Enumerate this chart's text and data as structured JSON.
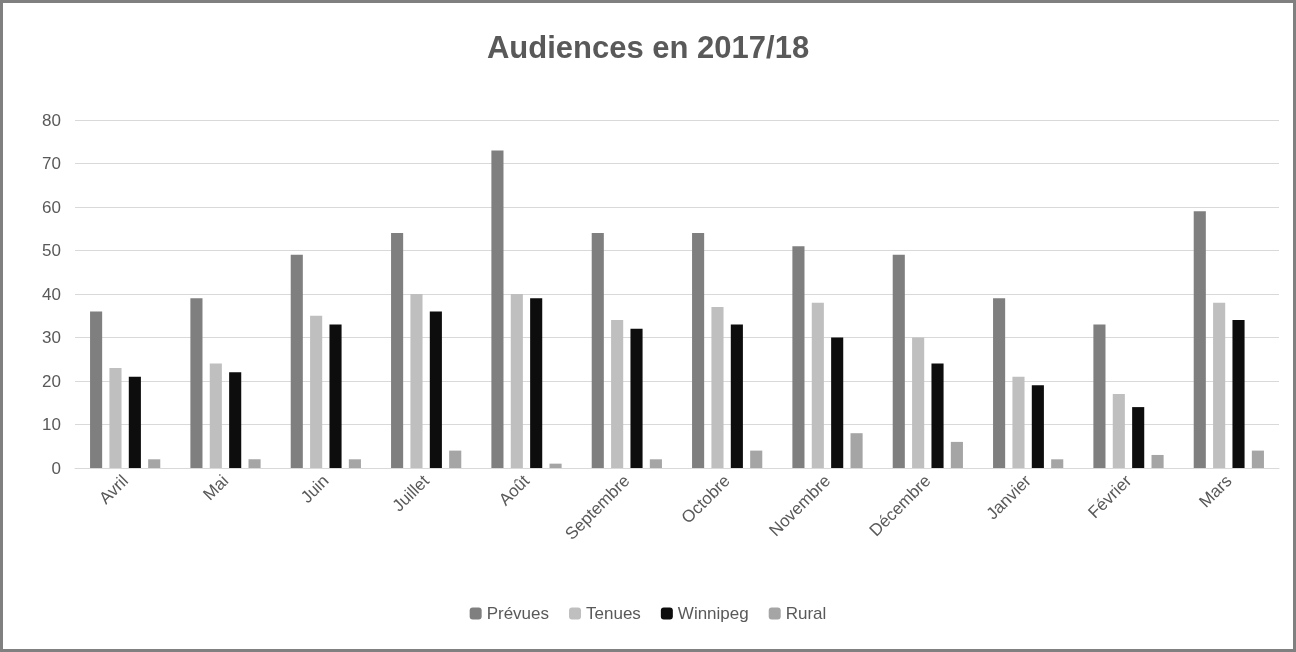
{
  "chart_data": {
    "type": "bar",
    "title": "Audiences en 2017/18",
    "categories": [
      "Avril",
      "Mai",
      "Juin",
      "Juillet",
      "Août",
      "Septembre",
      "Octobre",
      "Novembre",
      "Décembre",
      "Janvier",
      "Février",
      "Mars"
    ],
    "series": [
      {
        "name": "Prévues",
        "color": "#7f7f7f",
        "values": [
          36,
          39,
          49,
          54,
          73,
          54,
          54,
          51,
          49,
          39,
          33,
          59
        ]
      },
      {
        "name": "Tenues",
        "color": "#bfbfbf",
        "values": [
          23,
          24,
          35,
          40,
          40,
          34,
          37,
          38,
          30,
          21,
          17,
          38
        ]
      },
      {
        "name": "Winnipeg",
        "color": "#0d0d0d",
        "values": [
          21,
          22,
          33,
          36,
          39,
          32,
          33,
          30,
          24,
          19,
          14,
          34
        ]
      },
      {
        "name": "Rural",
        "color": "#a5a5a5",
        "values": [
          2,
          2,
          2,
          4,
          1,
          2,
          4,
          8,
          6,
          2,
          3,
          4
        ]
      }
    ],
    "ylim": [
      0,
      80
    ],
    "yticks": [
      0,
      10,
      20,
      30,
      40,
      50,
      60,
      70,
      80
    ],
    "grid": "y",
    "legend": "bottom"
  }
}
